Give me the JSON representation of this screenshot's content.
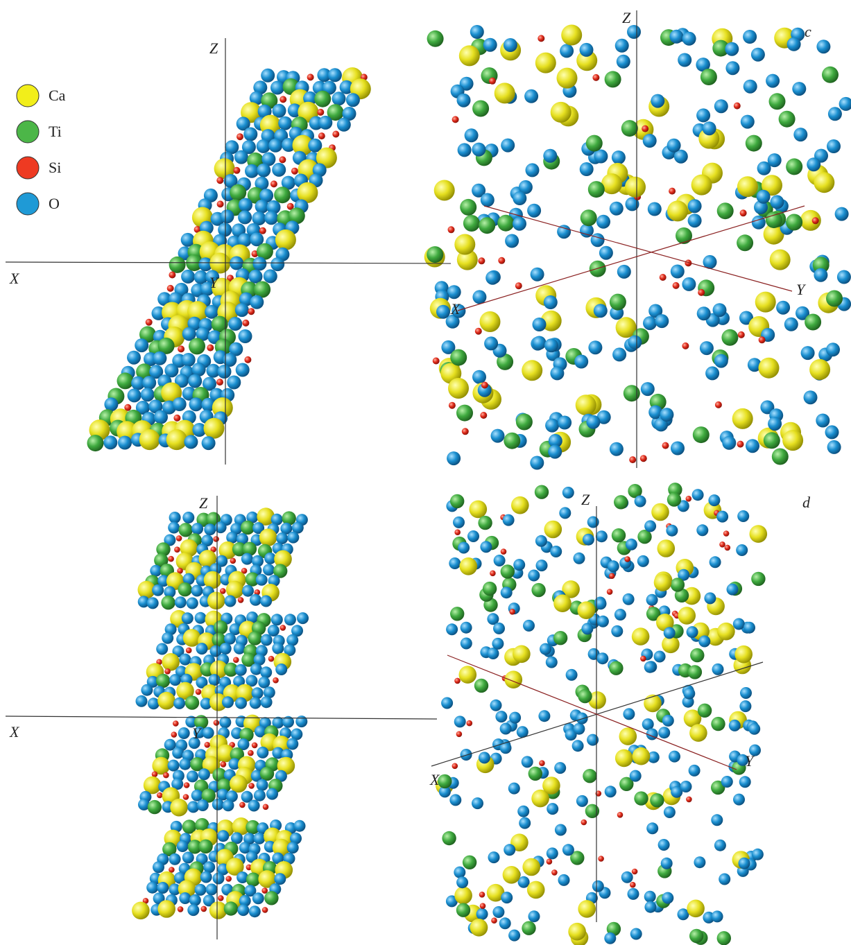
{
  "legend": [
    {
      "label": "Ca"
    },
    {
      "label": "Ti"
    },
    {
      "label": "Si"
    },
    {
      "label": "O"
    }
  ],
  "panels": [
    {
      "axes": {
        "x": "X",
        "y": "Y",
        "z": "Z"
      }
    },
    {
      "label": "c",
      "axes": {
        "x": "X",
        "y": "Y",
        "z": "Z"
      }
    },
    {
      "axes": {
        "x": "X",
        "y": "Y",
        "z": "Z"
      }
    },
    {
      "label": "d",
      "axes": {
        "x": "X",
        "y": "Y",
        "z": "Z"
      }
    }
  ]
}
